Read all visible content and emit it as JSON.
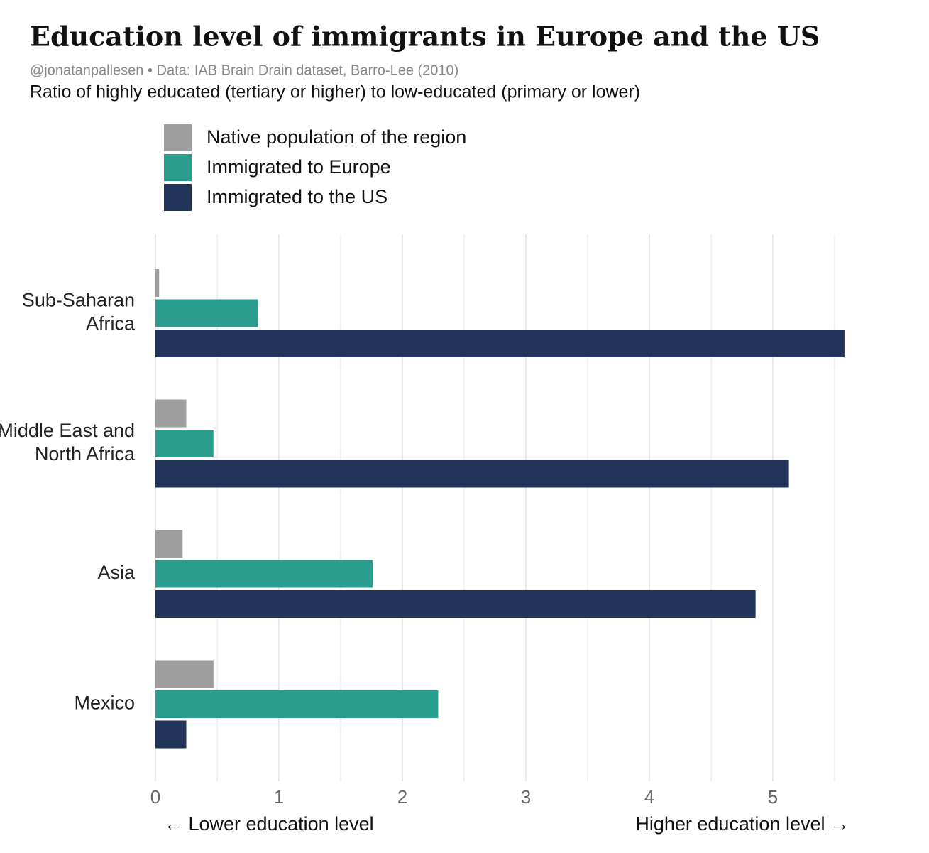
{
  "chart_data": {
    "type": "bar",
    "orientation": "horizontal",
    "title": "Education level of immigrants in Europe and the US",
    "source": "@jonatanpallesen • Data: IAB Brain Drain dataset, Barro-Lee (2010)",
    "subtitle": "Ratio of highly educated (tertiary or higher) to low-educated (primary or lower)",
    "categories": [
      [
        "Sub-Saharan",
        "Africa"
      ],
      [
        "Middle East and",
        "North Africa"
      ],
      [
        "Asia"
      ],
      [
        "Mexico"
      ]
    ],
    "series": [
      {
        "name": "Native population of the region",
        "color": "#9e9e9e",
        "values": [
          0.03,
          0.25,
          0.22,
          0.47
        ]
      },
      {
        "name": "Immigrated to Europe",
        "color": "#2a9d8f",
        "values": [
          0.83,
          0.47,
          1.76,
          2.29
        ]
      },
      {
        "name": "Immigrated to the US",
        "color": "#22345a",
        "values": [
          5.58,
          5.13,
          4.86,
          0.25
        ]
      }
    ],
    "xlim": [
      0,
      5.6
    ],
    "xticks": [
      0,
      1,
      2,
      3,
      4,
      5
    ],
    "minor_grid": [
      0.5,
      1.5,
      2.5,
      3.5,
      4.5,
      5.5
    ],
    "grid": true,
    "legend": "top-left",
    "x_label_left": "← Lower education level",
    "x_label_right": "Higher education level →"
  }
}
